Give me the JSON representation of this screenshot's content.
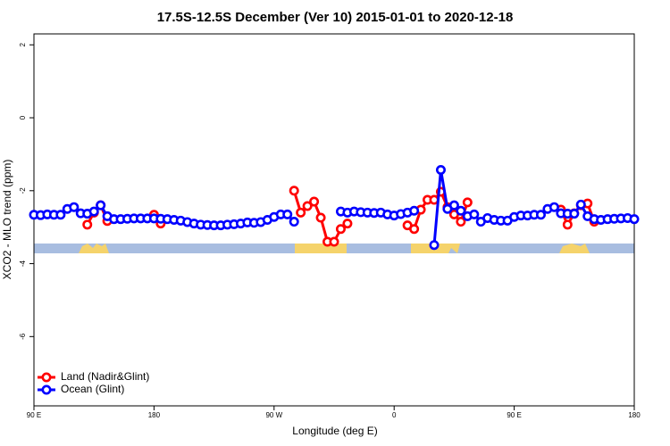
{
  "chart_data": {
    "type": "line",
    "title": "17.5S-12.5S December (Ver 10)   2015-01-01 to 2020-12-18",
    "x_label": "Longitude (deg E)",
    "y_label": "XCO2 - MLO trend (ppm)",
    "x": [
      90,
      95,
      100,
      105,
      110,
      115,
      120,
      125,
      130,
      135,
      140,
      145,
      150,
      155,
      160,
      165,
      170,
      175,
      180,
      185,
      190,
      195,
      200,
      205,
      210,
      215,
      220,
      225,
      230,
      235,
      240,
      245,
      250,
      255,
      260,
      265,
      270,
      275,
      280,
      285,
      290,
      295,
      300,
      305,
      310,
      315,
      320,
      325,
      330,
      335,
      340,
      345,
      350,
      355,
      360,
      365,
      370,
      375,
      380,
      385,
      390,
      395,
      400,
      405,
      410,
      415,
      420,
      425,
      430,
      435,
      440,
      445,
      450,
      455,
      460,
      465,
      470,
      475,
      480,
      485,
      490,
      495,
      500,
      505,
      510,
      515,
      520,
      525,
      530,
      535,
      540
    ],
    "series": [
      {
        "name": "Land (Nadir&Glint)",
        "color": "#ff0000",
        "values": [
          null,
          null,
          null,
          null,
          null,
          null,
          null,
          null,
          -2.93,
          -2.6,
          -2.4,
          -2.83,
          null,
          null,
          null,
          null,
          null,
          null,
          -2.66,
          -2.9,
          null,
          null,
          null,
          null,
          null,
          null,
          null,
          null,
          null,
          null,
          null,
          null,
          null,
          null,
          null,
          null,
          null,
          null,
          null,
          -2.0,
          -2.6,
          -2.42,
          -2.3,
          -2.74,
          -3.4,
          -3.4,
          -3.05,
          -2.9,
          null,
          null,
          null,
          null,
          null,
          null,
          null,
          null,
          -2.95,
          -3.05,
          -2.52,
          -2.25,
          -2.25,
          -2.03,
          -2.45,
          -2.65,
          -2.85,
          -2.32,
          null,
          null,
          null,
          null,
          null,
          null,
          null,
          null,
          null,
          null,
          null,
          null,
          null,
          -2.52,
          -2.93,
          -2.62,
          -2.4,
          -2.35,
          -2.85,
          null,
          null,
          null,
          null,
          null,
          null
        ]
      },
      {
        "name": "Ocean (Glint)",
        "color": "#0000ff",
        "values": [
          -2.66,
          -2.67,
          -2.65,
          -2.66,
          -2.66,
          -2.5,
          -2.45,
          -2.62,
          -2.63,
          -2.57,
          -2.4,
          -2.7,
          -2.78,
          -2.78,
          -2.77,
          -2.76,
          -2.76,
          -2.76,
          -2.76,
          -2.77,
          -2.78,
          -2.8,
          -2.82,
          -2.86,
          -2.9,
          -2.93,
          -2.94,
          -2.95,
          -2.95,
          -2.93,
          -2.92,
          -2.9,
          -2.87,
          -2.88,
          -2.86,
          -2.8,
          -2.72,
          -2.65,
          -2.65,
          -2.85,
          null,
          null,
          null,
          null,
          null,
          null,
          -2.57,
          -2.6,
          -2.57,
          -2.59,
          -2.6,
          -2.61,
          -2.6,
          -2.65,
          -2.68,
          -2.64,
          -2.6,
          -2.55,
          null,
          null,
          -3.49,
          -1.43,
          -2.5,
          -2.4,
          -2.55,
          -2.7,
          -2.65,
          -2.85,
          -2.75,
          -2.8,
          -2.82,
          -2.82,
          -2.72,
          -2.68,
          -2.68,
          -2.66,
          -2.66,
          -2.5,
          -2.45,
          -2.62,
          -2.63,
          -2.63,
          -2.38,
          -2.7,
          -2.78,
          -2.8,
          -2.78,
          -2.77,
          -2.76,
          -2.75,
          -2.78
        ]
      }
    ],
    "xlim": [
      90,
      540
    ],
    "xticks": [
      {
        "value": 90,
        "label": "90 E"
      },
      {
        "value": 180,
        "label": "180"
      },
      {
        "value": 270,
        "label": "90 W"
      },
      {
        "value": 360,
        "label": "0"
      },
      {
        "value": 450,
        "label": "90 E"
      },
      {
        "value": 540,
        "label": "180"
      }
    ],
    "ylim": [
      -7.9,
      2.3
    ],
    "yticks": [
      2,
      0,
      -2,
      -4,
      -6
    ],
    "legend": "bottom-left"
  }
}
